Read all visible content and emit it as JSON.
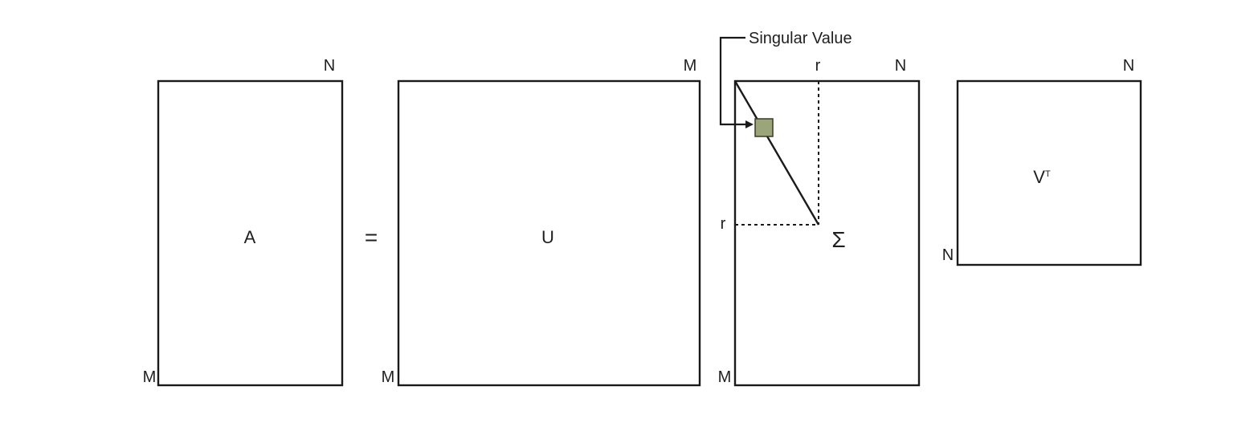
{
  "equation": {
    "operator": "=",
    "matrices": [
      {
        "id": "A",
        "name": "A",
        "top_dim": "N",
        "left_dim": "M"
      },
      {
        "id": "U",
        "name": "U",
        "top_dim": "M",
        "left_dim": "M"
      },
      {
        "id": "Sigma",
        "name": "Σ",
        "top_dim": "N",
        "left_dim": "M",
        "rank_label_top": "r",
        "rank_label_left": "r"
      },
      {
        "id": "VT",
        "name": "V",
        "name_superscript": "T",
        "top_dim": "N",
        "left_dim": "N"
      }
    ]
  },
  "callout": {
    "label": "Singular Value",
    "marker_color": "#9aa67a"
  }
}
